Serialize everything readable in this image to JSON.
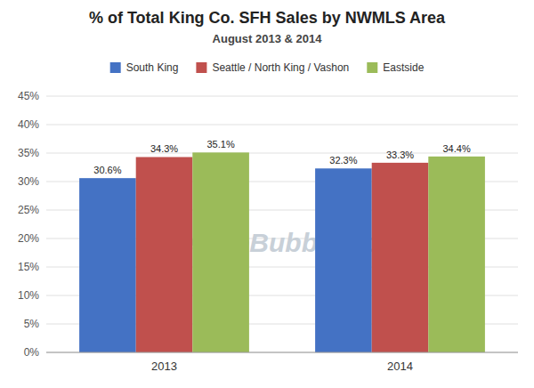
{
  "chart_data": {
    "type": "bar",
    "title": "% of Total King Co. SFH Sales by NWMLS Area",
    "subtitle": "August 2013 & 2014",
    "categories": [
      "2013",
      "2014"
    ],
    "series": [
      {
        "name": "South King",
        "color": "#4472C4",
        "values": [
          30.6,
          32.3
        ],
        "value_labels": [
          "30.6%",
          "32.3%"
        ]
      },
      {
        "name": "Seattle / North King / Vashon",
        "color": "#C0504D",
        "values": [
          34.3,
          33.3
        ],
        "value_labels": [
          "34.3%",
          "33.3%"
        ]
      },
      {
        "name": "Eastside",
        "color": "#9BBB59",
        "values": [
          35.1,
          34.4
        ],
        "value_labels": [
          "35.1%",
          "34.4%"
        ]
      }
    ],
    "ylim": [
      0,
      45
    ],
    "yticks": [
      {
        "value": 0,
        "label": "0%"
      },
      {
        "value": 5,
        "label": "5%"
      },
      {
        "value": 10,
        "label": "10%"
      },
      {
        "value": 15,
        "label": "15%"
      },
      {
        "value": 20,
        "label": "20%"
      },
      {
        "value": 25,
        "label": "25%"
      },
      {
        "value": 30,
        "label": "30%"
      },
      {
        "value": 35,
        "label": "35%"
      },
      {
        "value": 40,
        "label": "40%"
      },
      {
        "value": 45,
        "label": "45%"
      }
    ],
    "grid": true,
    "legend": "top",
    "data_labels": true,
    "annotations": [
      {
        "text": "SeattleBubble.com",
        "color": "#c8d0d8"
      }
    ]
  }
}
